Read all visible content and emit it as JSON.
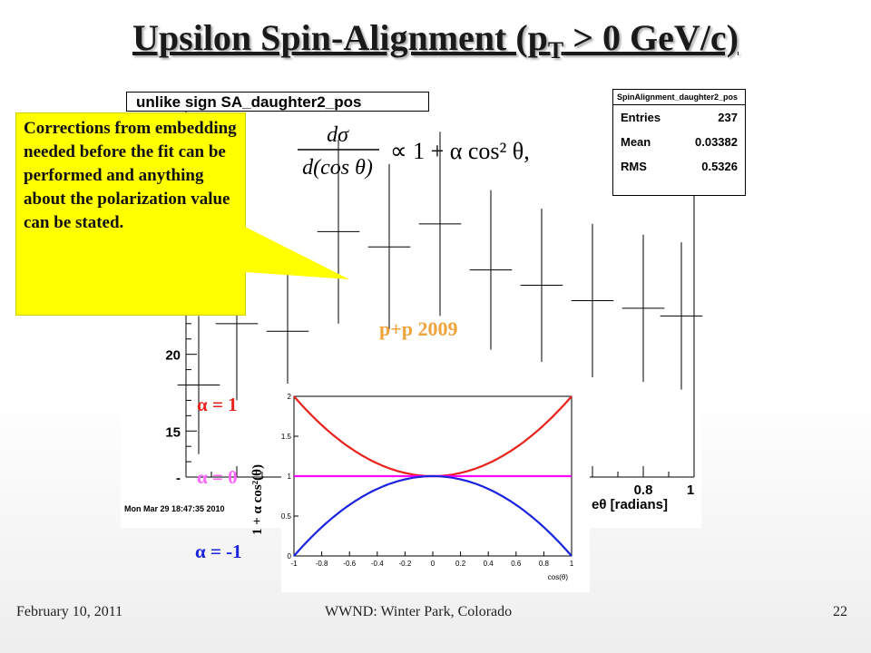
{
  "slide": {
    "title_main": "Upsilon Spin-Alignment (p",
    "title_sub": "T",
    "title_tail": " > 0 GeV/c)",
    "footer_left": "February 10, 2011",
    "footer_center": "WWND: Winter Park, Colorado",
    "footer_right": "22"
  },
  "histogram": {
    "title": "unlike sign SA_daughter2_pos",
    "stats_title": "SpinAlignment_daughter2_pos",
    "stats": [
      {
        "label": "Entries",
        "value": "237"
      },
      {
        "label": "Mean",
        "value": "0.03382"
      },
      {
        "label": "RMS",
        "value": "0.5326"
      }
    ],
    "timestamp": "Mon Mar 29 18:47:35 2010",
    "ytick_20": "20",
    "ytick_15": "15",
    "ytick_partial": "-",
    "xtick_08": "0.8",
    "xtick_1": "1",
    "xaxis_label_fragment": "eθ [radians]",
    "equation_lhs_num": "dσ",
    "equation_lhs_den": "d(cos θ)",
    "equation_rhs": "∝ 1 + α cos² θ,"
  },
  "callout": {
    "text": "Corrections from embedding needed before the fit can be performed and anything about the polarization value can be stated."
  },
  "labels": {
    "dataset": "p+p 2009",
    "alpha_pos": "α = 1",
    "alpha_zero": "α = 0",
    "alpha_neg": "α = -1",
    "inset_ylabel": "1 + α cos²(θ)",
    "inset_xlabel": "cos(θ)"
  },
  "colors": {
    "alpha_pos": "#e8211b",
    "alpha_zero": "#ff66ff",
    "alpha_neg": "#1a23e0",
    "dataset": "#f0a33a",
    "callout_bg": "#ffff00"
  },
  "chart_data": [
    {
      "type": "scatter",
      "title": "unlike sign SA_daughter2_pos",
      "xlabel": "cosθ [radians]",
      "ylabel": "",
      "xlim": [
        -1,
        1
      ],
      "ylim": [
        12,
        36
      ],
      "x": [
        -0.8,
        -0.6,
        -0.4,
        -0.2,
        0.0,
        0.2,
        0.4,
        0.6,
        0.8
      ],
      "y": [
        22,
        21.5,
        28,
        27,
        28.5,
        25.5,
        24.5,
        23.5,
        23
      ],
      "yerr": [
        5,
        4.6,
        6,
        5.4,
        6,
        5.2,
        5,
        5,
        4.8
      ],
      "x_partial_bins": [
        -0.95,
        0.95
      ],
      "y_partial_bins": [
        18,
        22.5
      ],
      "stats": {
        "Entries": 237,
        "Mean": 0.03382,
        "RMS": 0.5326
      },
      "grid": false
    },
    {
      "type": "line",
      "xlabel": "cos(θ)",
      "ylabel": "1 + α cos²(θ)",
      "xlim": [
        -1,
        1
      ],
      "ylim": [
        0,
        2
      ],
      "xticks": [
        "-1",
        "-0.8",
        "-0.6",
        "-0.4",
        "-0.2",
        "0",
        "0.2",
        "0.4",
        "0.6",
        "0.8",
        "1"
      ],
      "yticks": [
        "0",
        "0.5",
        "1",
        "1.5",
        "2"
      ],
      "series": [
        {
          "name": "α = 1",
          "alpha": 1,
          "color": "#e8211b"
        },
        {
          "name": "α = 0",
          "alpha": 0,
          "color": "#ff00ff"
        },
        {
          "name": "α = -1",
          "alpha": -1,
          "color": "#1a23e0"
        }
      ],
      "grid": false
    }
  ]
}
